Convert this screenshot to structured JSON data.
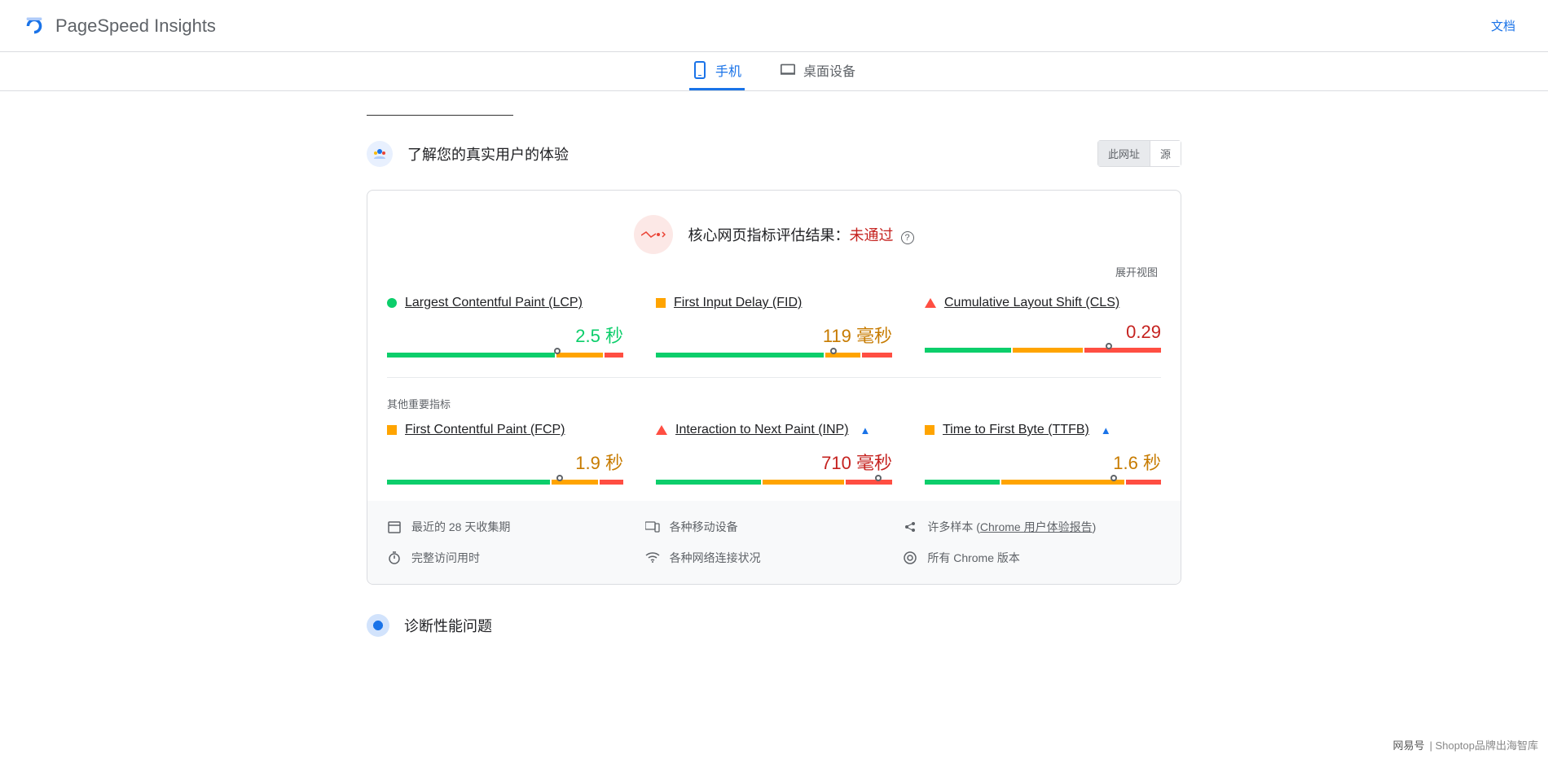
{
  "header": {
    "app_title": "PageSpeed Insights",
    "docs": "文档"
  },
  "tabs": {
    "mobile": "手机",
    "desktop": "桌面设备"
  },
  "section": {
    "ux_title": "了解您的真实用户的体验",
    "toggle_url": "此网址",
    "toggle_origin": "源"
  },
  "assessment": {
    "prefix": "核心网页指标评估结果：",
    "status": "未通过",
    "status_color": "#c5221f",
    "badge_bg": "#fce8e6",
    "expand": "展开视图"
  },
  "colors": {
    "good": "#0cce6b",
    "mid": "#ffa400",
    "poor": "#ff4e42"
  },
  "metrics_core": [
    {
      "shape": "circle",
      "name": "Largest Contentful Paint (LCP)",
      "value": "2.5 秒",
      "val_class": "val-green",
      "segs": [
        72,
        20,
        8
      ],
      "marker_pct": 72,
      "flask": false
    },
    {
      "shape": "square",
      "name": "First Input Delay (FID)",
      "value": "119 毫秒",
      "val_class": "val-orange",
      "segs": [
        72,
        15,
        13
      ],
      "marker_pct": 75,
      "flask": false
    },
    {
      "shape": "triangle",
      "name": "Cumulative Layout Shift (CLS)",
      "value": "0.29",
      "val_class": "val-red",
      "segs": [
        37,
        30,
        33
      ],
      "marker_pct": 78,
      "flask": false
    }
  ],
  "other_label": "其他重要指标",
  "metrics_other": [
    {
      "shape": "square",
      "name": "First Contentful Paint (FCP)",
      "value": "1.9 秒",
      "val_class": "val-orange",
      "segs": [
        70,
        20,
        10
      ],
      "marker_pct": 73,
      "flask": false
    },
    {
      "shape": "triangle",
      "name": "Interaction to Next Paint (INP)",
      "value": "710 毫秒",
      "val_class": "val-red",
      "segs": [
        45,
        35,
        20
      ],
      "marker_pct": 94,
      "flask": true
    },
    {
      "shape": "square",
      "name": "Time to First Byte (TTFB)",
      "value": "1.6 秒",
      "val_class": "val-orange",
      "segs": [
        32,
        53,
        15
      ],
      "marker_pct": 80,
      "flask": true
    }
  ],
  "info": {
    "period": "最近的 28 天收集期",
    "devices": "各种移动设备",
    "samples_prefix": "许多样本",
    "samples_link": "Chrome 用户体验报告",
    "duration": "完整访问用时",
    "network": "各种网络连接状况",
    "chrome": "所有 Chrome 版本"
  },
  "diag_title": "诊断性能问题",
  "watermark": {
    "brand": "网易号",
    "text": "Shoptop品牌出海智库"
  }
}
